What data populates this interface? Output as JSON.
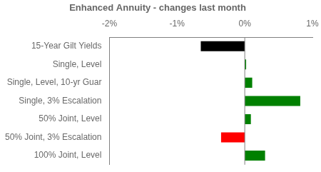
{
  "chart_data": {
    "type": "bar",
    "orientation": "horizontal",
    "title": "Enhanced Annuity - changes last month",
    "categories": [
      "15-Year Gilt Yields",
      "Single, Level",
      "Single, Level, 10-yr Guar",
      "Single, 3% Escalation",
      "50% Joint, Level",
      "50% Joint, 3% Escalation",
      "100% Joint, Level"
    ],
    "values": [
      -0.65,
      0.02,
      0.11,
      0.82,
      0.09,
      -0.35,
      0.3
    ],
    "colors": [
      "#000000",
      "#008000",
      "#008000",
      "#008000",
      "#008000",
      "#ff0000",
      "#008000"
    ],
    "xlim": [
      -2.0,
      1.0
    ],
    "xticks": [
      {
        "value": -2.0,
        "label": "-2%"
      },
      {
        "value": -1.0,
        "label": "-1%"
      },
      {
        "value": 0.0,
        "label": "0%"
      },
      {
        "value": 1.0,
        "label": "1%"
      }
    ],
    "grid": false
  }
}
